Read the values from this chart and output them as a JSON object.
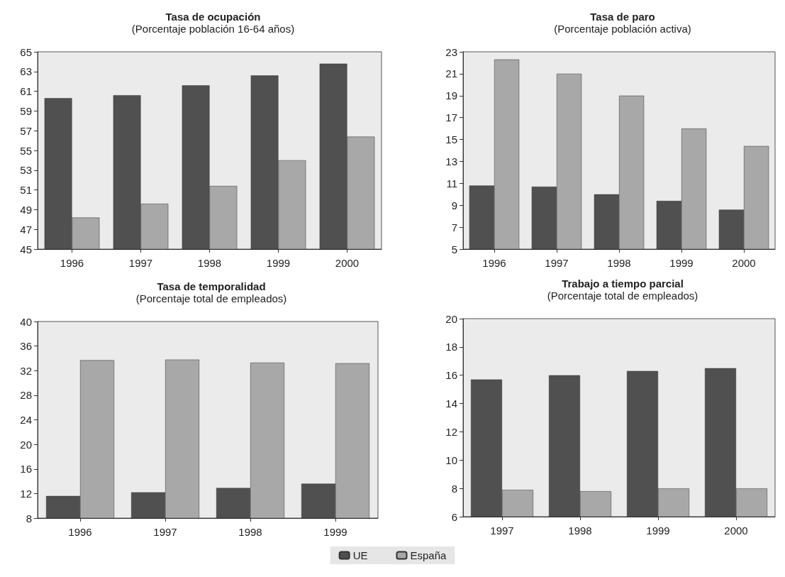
{
  "chart_data": [
    {
      "type": "bar",
      "title": "Tasa de ocupación",
      "subtitle": "(Porcentaje población 16-64 años)",
      "categories": [
        "1996",
        "1997",
        "1998",
        "1999",
        "2000"
      ],
      "ylim": [
        45,
        65
      ],
      "yticks": [
        45,
        47,
        49,
        51,
        53,
        55,
        57,
        59,
        61,
        63,
        65
      ],
      "legend": "bottom",
      "series": [
        {
          "name": "UE",
          "color": "#505050",
          "values": [
            60.3,
            60.6,
            61.6,
            62.6,
            63.8
          ]
        },
        {
          "name": "España",
          "color": "#a8a8a8",
          "values": [
            48.2,
            49.6,
            51.4,
            54.0,
            56.4
          ]
        }
      ]
    },
    {
      "type": "bar",
      "title": "Tasa de paro",
      "subtitle": "(Porcentaje población activa)",
      "categories": [
        "1996",
        "1997",
        "1998",
        "1999",
        "2000"
      ],
      "ylim": [
        5,
        23
      ],
      "yticks": [
        5,
        7,
        9,
        11,
        13,
        15,
        17,
        19,
        21,
        23
      ],
      "legend": "bottom",
      "series": [
        {
          "name": "UE",
          "color": "#505050",
          "values": [
            10.8,
            10.7,
            10.0,
            9.4,
            8.6
          ]
        },
        {
          "name": "España",
          "color": "#a8a8a8",
          "values": [
            22.3,
            21.0,
            19.0,
            16.0,
            14.4
          ]
        }
      ]
    },
    {
      "type": "bar",
      "title": "Tasa de temporalidad",
      "subtitle": "(Porcentaje total de empleados)",
      "categories": [
        "1996",
        "1997",
        "1998",
        "1999"
      ],
      "ylim": [
        8,
        40
      ],
      "yticks": [
        8,
        12,
        16,
        20,
        24,
        28,
        32,
        36,
        40
      ],
      "legend": "bottom",
      "series": [
        {
          "name": "UE",
          "color": "#505050",
          "values": [
            11.6,
            12.2,
            12.9,
            13.6
          ]
        },
        {
          "name": "España",
          "color": "#a8a8a8",
          "values": [
            33.7,
            33.8,
            33.3,
            33.2
          ]
        }
      ]
    },
    {
      "type": "bar",
      "title": "Trabajo a tiempo parcial",
      "subtitle": "(Porcentaje total de empleados)",
      "categories": [
        "1997",
        "1998",
        "1999",
        "2000"
      ],
      "ylim": [
        6,
        20
      ],
      "yticks": [
        6,
        8,
        10,
        12,
        14,
        16,
        18,
        20
      ],
      "legend": "bottom",
      "series": [
        {
          "name": "UE",
          "color": "#505050",
          "values": [
            15.7,
            16.0,
            16.3,
            16.5
          ]
        },
        {
          "name": "España",
          "color": "#a8a8a8",
          "values": [
            7.9,
            7.8,
            8.0,
            8.0
          ]
        }
      ]
    }
  ]
}
